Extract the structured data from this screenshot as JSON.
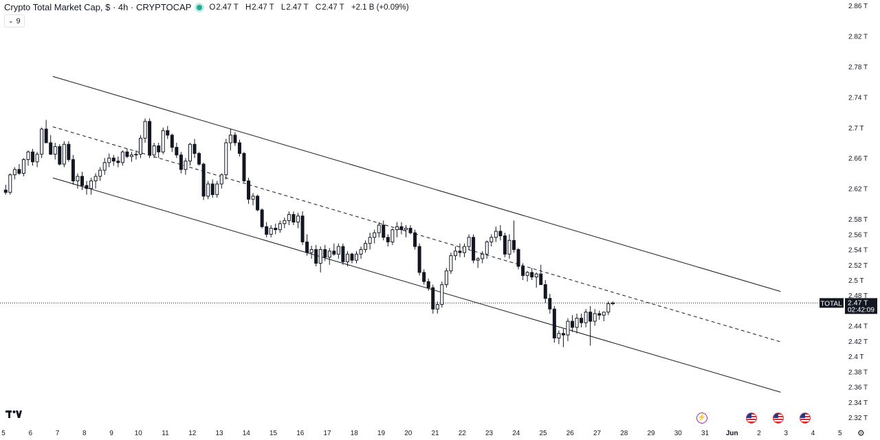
{
  "header": {
    "title": "Crypto Total Market Cap, $ · 4h · CRYPTOCAP",
    "ohlc": [
      {
        "key": "O",
        "value": "2.47 T"
      },
      {
        "key": "H",
        "value": "2.47 T"
      },
      {
        "key": "L",
        "value": "2.47 T"
      },
      {
        "key": "C",
        "value": "2.47 T"
      },
      {
        "key": "",
        "value": "+2.1 B (+0.09%)"
      }
    ],
    "indicator_count": "9",
    "status_color": "#22ab94"
  },
  "price_tag": {
    "label": "TOTAL",
    "value": "2.47 T",
    "countdown": "02:42:09"
  },
  "icons": {
    "logo": "tradingview-logo",
    "events": [
      "lightning-event-icon",
      "us-flag-event-icon",
      "us-flag-event-icon",
      "us-flag-event-icon"
    ],
    "settings": "gear-icon"
  },
  "chart_data": {
    "type": "candlestick",
    "title": "Crypto Total Market Cap, $ · 4h · CRYPTOCAP",
    "ylim": [
      2.32,
      2.86
    ],
    "y_ticks": [
      {
        "v": 2.86,
        "label": "2.86 T"
      },
      {
        "v": 2.82,
        "label": "2.82 T"
      },
      {
        "v": 2.78,
        "label": "2.78 T"
      },
      {
        "v": 2.74,
        "label": "2.74 T"
      },
      {
        "v": 2.7,
        "label": "2.7 T"
      },
      {
        "v": 2.66,
        "label": "2.66 T"
      },
      {
        "v": 2.62,
        "label": "2.62 T"
      },
      {
        "v": 2.58,
        "label": "2.58 T"
      },
      {
        "v": 2.56,
        "label": "2.56 T"
      },
      {
        "v": 2.54,
        "label": "2.54 T"
      },
      {
        "v": 2.52,
        "label": "2.52 T"
      },
      {
        "v": 2.5,
        "label": "2.5 T"
      },
      {
        "v": 2.48,
        "label": "2.48 T"
      },
      {
        "v": 2.44,
        "label": "2.44 T"
      },
      {
        "v": 2.42,
        "label": "2.42 T"
      },
      {
        "v": 2.4,
        "label": "2.4 T"
      },
      {
        "v": 2.38,
        "label": "2.38 T"
      },
      {
        "v": 2.36,
        "label": "2.36 T"
      },
      {
        "v": 2.34,
        "label": "2.34 T"
      },
      {
        "v": 2.32,
        "label": "2.32 T"
      }
    ],
    "x_ticks": [
      {
        "day": 5,
        "label": "5"
      },
      {
        "day": 6,
        "label": "6"
      },
      {
        "day": 7,
        "label": "7"
      },
      {
        "day": 8,
        "label": "8"
      },
      {
        "day": 9,
        "label": "9"
      },
      {
        "day": 10,
        "label": "10"
      },
      {
        "day": 11,
        "label": "11"
      },
      {
        "day": 12,
        "label": "12"
      },
      {
        "day": 13,
        "label": "13"
      },
      {
        "day": 14,
        "label": "14"
      },
      {
        "day": 15,
        "label": "15"
      },
      {
        "day": 16,
        "label": "16"
      },
      {
        "day": 17,
        "label": "17"
      },
      {
        "day": 18,
        "label": "18"
      },
      {
        "day": 19,
        "label": "19"
      },
      {
        "day": 20,
        "label": "20"
      },
      {
        "day": 21,
        "label": "21"
      },
      {
        "day": 22,
        "label": "22"
      },
      {
        "day": 23,
        "label": "23"
      },
      {
        "day": 24,
        "label": "24"
      },
      {
        "day": 25,
        "label": "25"
      },
      {
        "day": 26,
        "label": "26"
      },
      {
        "day": 27,
        "label": "27"
      },
      {
        "day": 28,
        "label": "28"
      },
      {
        "day": 29,
        "label": "29"
      },
      {
        "day": 30,
        "label": "30"
      },
      {
        "day": 31,
        "label": "31"
      },
      {
        "day": 32,
        "label": "Jun"
      },
      {
        "day": 33,
        "label": "2"
      },
      {
        "day": 34,
        "label": "3"
      },
      {
        "day": 35,
        "label": "4"
      },
      {
        "day": 36,
        "label": "5"
      }
    ],
    "current_price": 2.47,
    "channel": {
      "upper": [
        [
          6.83,
          2.767
        ],
        [
          33.8,
          2.485
        ]
      ],
      "middle": [
        [
          6.83,
          2.701
        ],
        [
          33.8,
          2.419
        ]
      ],
      "lower": [
        [
          6.83,
          2.634
        ],
        [
          33.8,
          2.353
        ]
      ]
    },
    "candles_4h_from_day5": [
      [
        2.618,
        2.625,
        2.612,
        2.615
      ],
      [
        2.615,
        2.64,
        2.612,
        2.638
      ],
      [
        2.638,
        2.648,
        2.632,
        2.645
      ],
      [
        2.645,
        2.652,
        2.638,
        2.64
      ],
      [
        2.64,
        2.66,
        2.636,
        2.658
      ],
      [
        2.658,
        2.67,
        2.65,
        2.668
      ],
      [
        2.668,
        2.672,
        2.65,
        2.655
      ],
      [
        2.655,
        2.668,
        2.648,
        2.665
      ],
      [
        2.665,
        2.7,
        2.66,
        2.698
      ],
      [
        2.698,
        2.71,
        2.68,
        2.68
      ],
      [
        2.68,
        2.69,
        2.664,
        2.665
      ],
      [
        2.665,
        2.68,
        2.658,
        2.675
      ],
      [
        2.675,
        2.678,
        2.65,
        2.652
      ],
      [
        2.652,
        2.682,
        2.648,
        2.678
      ],
      [
        2.678,
        2.682,
        2.655,
        2.658
      ],
      [
        2.658,
        2.664,
        2.625,
        2.63
      ],
      [
        2.63,
        2.64,
        2.62,
        2.636
      ],
      [
        2.636,
        2.642,
        2.618,
        2.624
      ],
      [
        2.624,
        2.63,
        2.612,
        2.62
      ],
      [
        2.62,
        2.634,
        2.612,
        2.63
      ],
      [
        2.63,
        2.64,
        2.62,
        2.636
      ],
      [
        2.636,
        2.648,
        2.63,
        2.644
      ],
      [
        2.644,
        2.66,
        2.638,
        2.654
      ],
      [
        2.654,
        2.666,
        2.648,
        2.66
      ],
      [
        2.66,
        2.664,
        2.65,
        2.656
      ],
      [
        2.656,
        2.662,
        2.648,
        2.654
      ],
      [
        2.654,
        2.67,
        2.65,
        2.668
      ],
      [
        2.668,
        2.672,
        2.66,
        2.662
      ],
      [
        2.662,
        2.668,
        2.655,
        2.664
      ],
      [
        2.664,
        2.67,
        2.658,
        2.665
      ],
      [
        2.665,
        2.69,
        2.66,
        2.686
      ],
      [
        2.686,
        2.712,
        2.68,
        2.708
      ],
      [
        2.708,
        2.712,
        2.66,
        2.664
      ],
      [
        2.664,
        2.68,
        2.66,
        2.676
      ],
      [
        2.676,
        2.68,
        2.66,
        2.668
      ],
      [
        2.668,
        2.7,
        2.665,
        2.696
      ],
      [
        2.696,
        2.702,
        2.685,
        2.69
      ],
      [
        2.69,
        2.692,
        2.668,
        2.674
      ],
      [
        2.674,
        2.68,
        2.66,
        2.664
      ],
      [
        2.664,
        2.668,
        2.64,
        2.645
      ],
      [
        2.645,
        2.66,
        2.638,
        2.656
      ],
      [
        2.656,
        2.68,
        2.65,
        2.678
      ],
      [
        2.678,
        2.685,
        2.66,
        2.666
      ],
      [
        2.666,
        2.668,
        2.65,
        2.652
      ],
      [
        2.652,
        2.654,
        2.605,
        2.61
      ],
      [
        2.61,
        2.63,
        2.606,
        2.626
      ],
      [
        2.626,
        2.632,
        2.608,
        2.612
      ],
      [
        2.612,
        2.63,
        2.608,
        2.626
      ],
      [
        2.626,
        2.64,
        2.62,
        2.638
      ],
      [
        2.638,
        2.685,
        2.632,
        2.68
      ],
      [
        2.68,
        2.698,
        2.67,
        2.69
      ],
      [
        2.69,
        2.694,
        2.676,
        2.68
      ],
      [
        2.68,
        2.684,
        2.662,
        2.666
      ],
      [
        2.666,
        2.668,
        2.628,
        2.63
      ],
      [
        2.63,
        2.634,
        2.6,
        2.606
      ],
      [
        2.606,
        2.614,
        2.598,
        2.61
      ],
      [
        2.61,
        2.612,
        2.59,
        2.592
      ],
      [
        2.592,
        2.594,
        2.568,
        2.57
      ],
      [
        2.57,
        2.576,
        2.556,
        2.56
      ],
      [
        2.56,
        2.572,
        2.556,
        2.568
      ],
      [
        2.568,
        2.574,
        2.56,
        2.566
      ],
      [
        2.566,
        2.578,
        2.562,
        2.574
      ],
      [
        2.574,
        2.582,
        2.568,
        2.578
      ],
      [
        2.578,
        2.59,
        2.572,
        2.586
      ],
      [
        2.586,
        2.59,
        2.572,
        2.576
      ],
      [
        2.576,
        2.588,
        2.568,
        2.584
      ],
      [
        2.584,
        2.59,
        2.546,
        2.55
      ],
      [
        2.55,
        2.56,
        2.532,
        2.536
      ],
      [
        2.536,
        2.545,
        2.528,
        2.54
      ],
      [
        2.54,
        2.546,
        2.518,
        2.522
      ],
      [
        2.522,
        2.544,
        2.51,
        2.54
      ],
      [
        2.54,
        2.546,
        2.525,
        2.53
      ],
      [
        2.53,
        2.542,
        2.52,
        2.538
      ],
      [
        2.538,
        2.548,
        2.532,
        2.534
      ],
      [
        2.534,
        2.548,
        2.528,
        2.544
      ],
      [
        2.544,
        2.548,
        2.52,
        2.524
      ],
      [
        2.524,
        2.538,
        2.518,
        2.534
      ],
      [
        2.534,
        2.536,
        2.522,
        2.526
      ],
      [
        2.526,
        2.538,
        2.522,
        2.534
      ],
      [
        2.534,
        2.544,
        2.528,
        2.54
      ],
      [
        2.54,
        2.552,
        2.536,
        2.548
      ],
      [
        2.548,
        2.562,
        2.54,
        2.556
      ],
      [
        2.556,
        2.566,
        2.548,
        2.562
      ],
      [
        2.562,
        2.576,
        2.556,
        2.572
      ],
      [
        2.572,
        2.578,
        2.552,
        2.556
      ],
      [
        2.556,
        2.56,
        2.544,
        2.55
      ],
      [
        2.55,
        2.568,
        2.546,
        2.566
      ],
      [
        2.566,
        2.576,
        2.556,
        2.57
      ],
      [
        2.57,
        2.576,
        2.56,
        2.566
      ],
      [
        2.566,
        2.572,
        2.556,
        2.568
      ],
      [
        2.568,
        2.572,
        2.56,
        2.562
      ],
      [
        2.562,
        2.566,
        2.54,
        2.544
      ],
      [
        2.544,
        2.548,
        2.506,
        2.51
      ],
      [
        2.51,
        2.514,
        2.494,
        2.498
      ],
      [
        2.498,
        2.502,
        2.486,
        2.49
      ],
      [
        2.49,
        2.494,
        2.456,
        2.462
      ],
      [
        2.462,
        2.472,
        2.456,
        2.468
      ],
      [
        2.468,
        2.498,
        2.464,
        2.494
      ],
      [
        2.494,
        2.516,
        2.49,
        2.512
      ],
      [
        2.512,
        2.536,
        2.508,
        2.532
      ],
      [
        2.532,
        2.544,
        2.526,
        2.538
      ],
      [
        2.538,
        2.548,
        2.53,
        2.536
      ],
      [
        2.536,
        2.548,
        2.53,
        2.544
      ],
      [
        2.544,
        2.56,
        2.54,
        2.556
      ],
      [
        2.556,
        2.56,
        2.522,
        2.526
      ],
      [
        2.526,
        2.53,
        2.516,
        2.528
      ],
      [
        2.528,
        2.538,
        2.522,
        2.534
      ],
      [
        2.534,
        2.552,
        2.528,
        2.55
      ],
      [
        2.55,
        2.56,
        2.544,
        2.556
      ],
      [
        2.556,
        2.57,
        2.55,
        2.564
      ],
      [
        2.564,
        2.572,
        2.552,
        2.558
      ],
      [
        2.558,
        2.562,
        2.53,
        2.534
      ],
      [
        2.534,
        2.56,
        2.528,
        2.552
      ],
      [
        2.552,
        2.578,
        2.536,
        2.54
      ],
      [
        2.54,
        2.542,
        2.514,
        2.518
      ],
      [
        2.518,
        2.522,
        2.5,
        2.506
      ],
      [
        2.506,
        2.512,
        2.498,
        2.51
      ],
      [
        2.51,
        2.516,
        2.5,
        2.504
      ],
      [
        2.504,
        2.51,
        2.49,
        2.508
      ],
      [
        2.508,
        2.52,
        2.5,
        2.494
      ],
      [
        2.494,
        2.5,
        2.47,
        2.476
      ],
      [
        2.476,
        2.482,
        2.456,
        2.462
      ],
      [
        2.462,
        2.466,
        2.418,
        2.424
      ],
      [
        2.424,
        2.434,
        2.416,
        2.43
      ],
      [
        2.43,
        2.436,
        2.412,
        2.428
      ],
      [
        2.428,
        2.45,
        2.42,
        2.446
      ],
      [
        2.446,
        2.454,
        2.432,
        2.438
      ],
      [
        2.438,
        2.456,
        2.43,
        2.45
      ],
      [
        2.45,
        2.456,
        2.438,
        2.444
      ],
      [
        2.444,
        2.462,
        2.438,
        2.458
      ],
      [
        2.458,
        2.466,
        2.414,
        2.446
      ],
      [
        2.446,
        2.462,
        2.44,
        2.456
      ],
      [
        2.456,
        2.46,
        2.448,
        2.454
      ],
      [
        2.454,
        2.458,
        2.446,
        2.458
      ],
      [
        2.458,
        2.472,
        2.454,
        2.469
      ],
      [
        2.469,
        2.472,
        2.467,
        2.47
      ]
    ]
  }
}
